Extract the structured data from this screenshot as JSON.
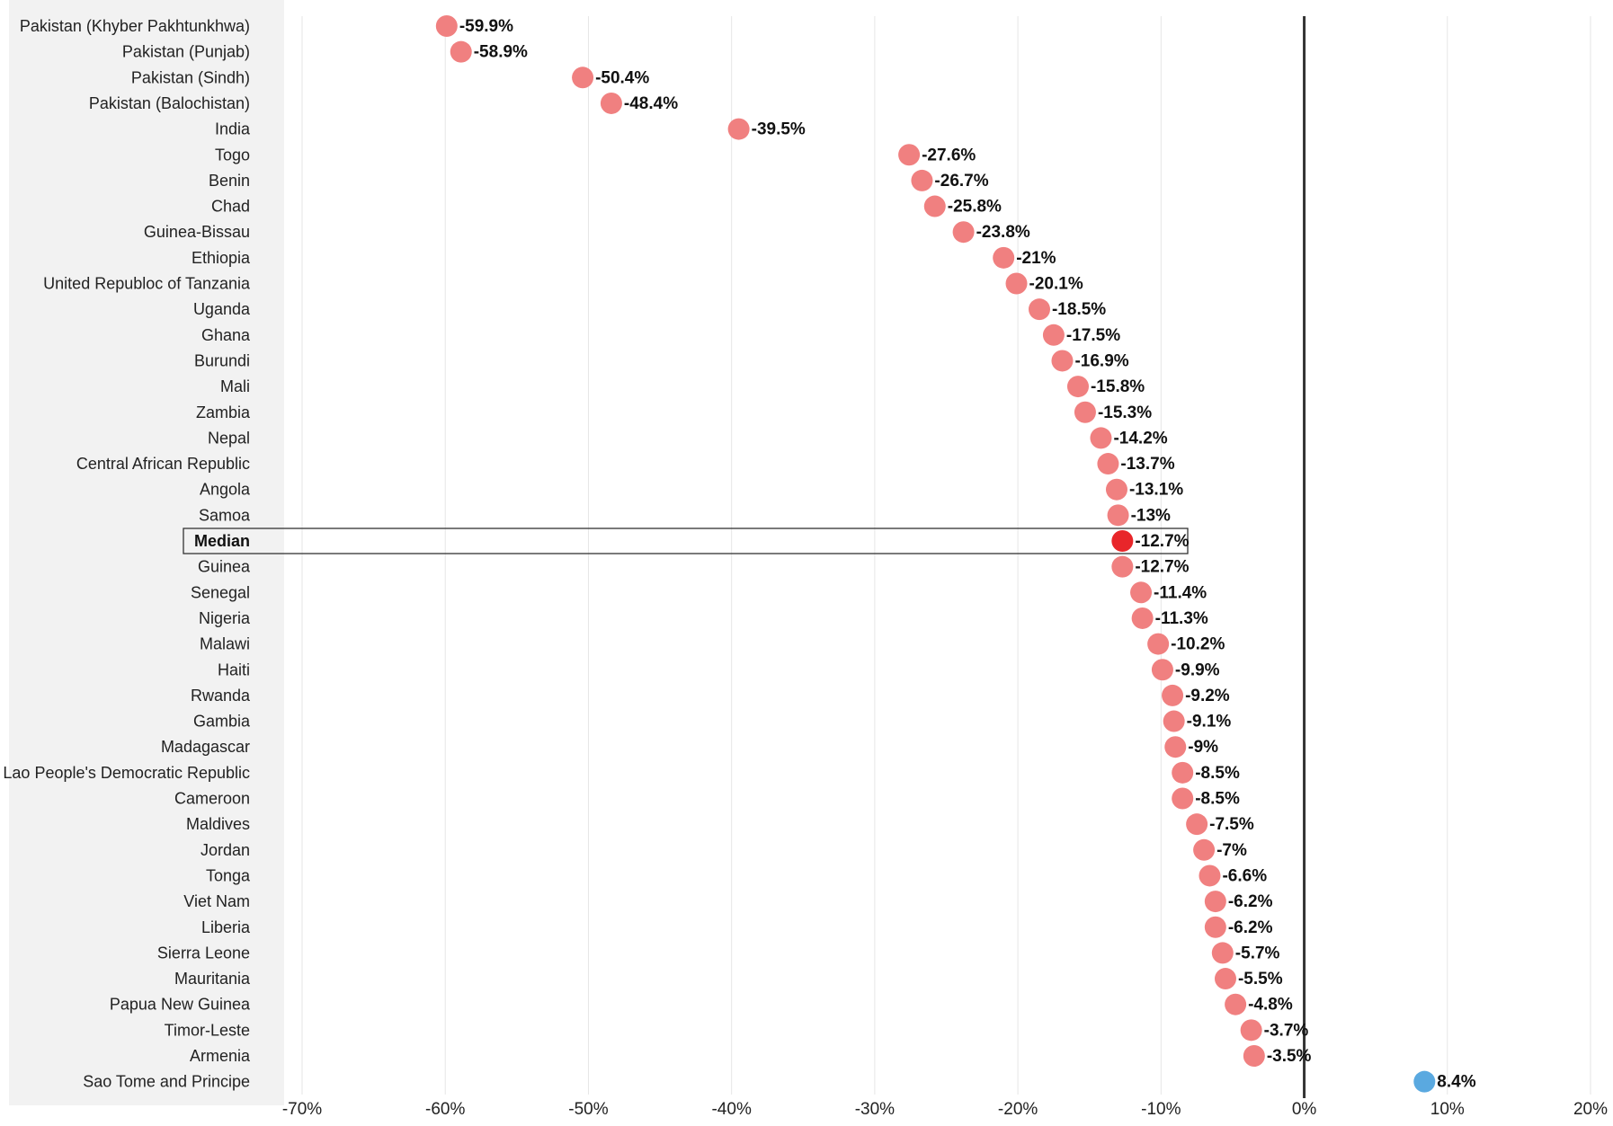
{
  "chart_data": {
    "type": "scatter",
    "title": "",
    "xlabel": "",
    "ylabel": "",
    "xlim": [
      -70,
      20
    ],
    "x_ticks": [
      "-70%",
      "-60%",
      "-50%",
      "-40%",
      "-30%",
      "-20%",
      "-10%",
      "0%",
      "10%",
      "20%"
    ],
    "x_tick_values": [
      -70,
      -60,
      -50,
      -40,
      -30,
      -20,
      -10,
      0,
      10,
      20
    ],
    "grid": true,
    "highlight_category": "Median",
    "colors": {
      "negative": "#f08080",
      "positive": "#5aa9e0",
      "median": "#e8262a",
      "zero_line": "#333333",
      "gridline": "#e6e6e6",
      "label_panel": "#f2f2f2"
    },
    "categories": [
      "Pakistan (Khyber Pakhtunkhwa)",
      "Pakistan (Punjab)",
      "Pakistan (Sindh)",
      "Pakistan (Balochistan)",
      "India",
      "Togo",
      "Benin",
      "Chad",
      "Guinea-Bissau",
      "Ethiopia",
      "United Republoc of Tanzania",
      "Uganda",
      "Ghana",
      "Burundi",
      "Mali",
      "Zambia",
      "Nepal",
      "Central African Republic",
      "Angola",
      "Samoa",
      "Median",
      "Guinea",
      "Senegal",
      "Nigeria",
      "Malawi",
      "Haiti",
      "Rwanda",
      "Gambia",
      "Madagascar",
      "Lao People's Democratic Republic",
      "Cameroon",
      "Maldives",
      "Jordan",
      "Tonga",
      "Viet Nam",
      "Liberia",
      "Sierra Leone",
      "Mauritania",
      "Papua New Guinea",
      "Timor-Leste",
      "Armenia",
      "Sao Tome and Principe"
    ],
    "values": [
      -59.9,
      -58.9,
      -50.4,
      -48.4,
      -39.5,
      -27.6,
      -26.7,
      -25.8,
      -23.8,
      -21,
      -20.1,
      -18.5,
      -17.5,
      -16.9,
      -15.8,
      -15.3,
      -14.2,
      -13.7,
      -13.1,
      -13,
      -12.7,
      -12.7,
      -11.4,
      -11.3,
      -10.2,
      -9.9,
      -9.2,
      -9.1,
      -9,
      -8.5,
      -8.5,
      -7.5,
      -7,
      -6.6,
      -6.2,
      -6.2,
      -5.7,
      -5.5,
      -4.8,
      -3.7,
      -3.5,
      8.4
    ],
    "value_labels": [
      "-59.9%",
      "-58.9%",
      "-50.4%",
      "-48.4%",
      "-39.5%",
      "-27.6%",
      "-26.7%",
      "-25.8%",
      "-23.8%",
      "-21%",
      "-20.1%",
      "-18.5%",
      "-17.5%",
      "-16.9%",
      "-15.8%",
      "-15.3%",
      "-14.2%",
      "-13.7%",
      "-13.1%",
      "-13%",
      "-12.7%",
      "-12.7%",
      "-11.4%",
      "-11.3%",
      "-10.2%",
      "-9.9%",
      "-9.2%",
      "-9.1%",
      "-9%",
      "-8.5%",
      "-8.5%",
      "-7.5%",
      "-7%",
      "-6.6%",
      "-6.2%",
      "-6.2%",
      "-5.7%",
      "-5.5%",
      "-4.8%",
      "-3.7%",
      "-3.5%",
      "8.4%"
    ]
  }
}
